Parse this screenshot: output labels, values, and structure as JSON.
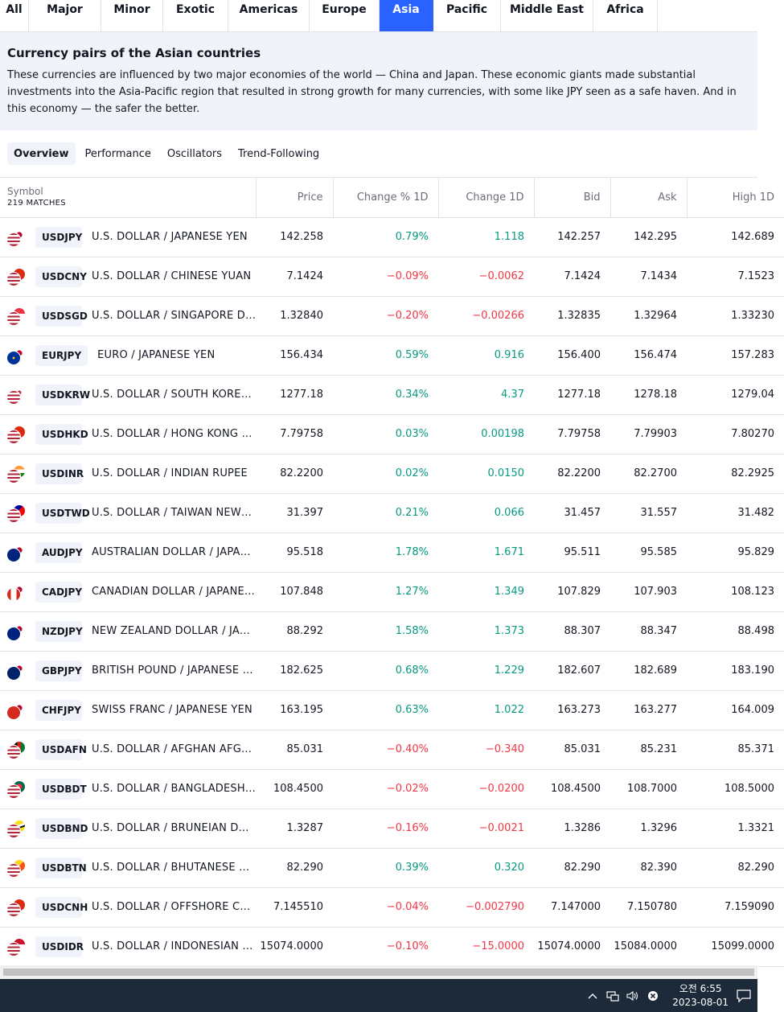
{
  "region_tabs": [
    {
      "label": "All",
      "width": 36
    },
    {
      "label": "Major",
      "width": 90
    },
    {
      "label": "Minor",
      "width": 77
    },
    {
      "label": "Exotic",
      "width": 81
    },
    {
      "label": "Americas",
      "width": 101
    },
    {
      "label": "Europe",
      "width": 87
    },
    {
      "label": "Asia",
      "width": 67,
      "active": true
    },
    {
      "label": "Pacific",
      "width": 84
    },
    {
      "label": "Middle East",
      "width": 115
    },
    {
      "label": "Africa",
      "width": 80
    }
  ],
  "description": {
    "title": "Currency pairs of the Asian countries",
    "text": "These currencies are influenced by two major economies of the world — China and Japan. These economic giants made substantial investments into the Asia-Pacific region that resulted in strong growth for many currencies, with some like JPY seen as a safe haven. And in this economy — the safer the better."
  },
  "sub_tabs": [
    {
      "label": "Overview",
      "active": true
    },
    {
      "label": "Performance"
    },
    {
      "label": "Oscillators"
    },
    {
      "label": "Trend-Following"
    }
  ],
  "table": {
    "symbol_header": "Symbol",
    "matches": "219 MATCHES",
    "columns": [
      "Price",
      "Change % 1D",
      "Change 1D",
      "Bid",
      "Ask",
      "High 1D"
    ],
    "rows": [
      {
        "ticker": "USDJPY",
        "name": "U.S. DOLLAR / JAPANESE YEN",
        "price": "142.258",
        "chg_pct": "0.79%",
        "chg": "1.118",
        "bid": "142.257",
        "ask": "142.295",
        "high": "142.689",
        "dir": "pos",
        "flag1": "usa",
        "flag2": "japan"
      },
      {
        "ticker": "USDCNY",
        "name": "U.S. DOLLAR / CHINESE YUAN",
        "price": "7.1424",
        "chg_pct": "−0.09%",
        "chg": "−0.0062",
        "bid": "7.1424",
        "ask": "7.1434",
        "high": "7.1523",
        "dir": "neg",
        "flag1": "usa",
        "flag2": "china"
      },
      {
        "ticker": "USDSGD",
        "name": "U.S. DOLLAR / SINGAPORE D…",
        "price": "1.32840",
        "chg_pct": "−0.20%",
        "chg": "−0.00266",
        "bid": "1.32835",
        "ask": "1.32964",
        "high": "1.33230",
        "dir": "neg",
        "flag1": "usa",
        "flag2": "singapore"
      },
      {
        "ticker": "EURJPY",
        "name": "EURO / JAPANESE YEN",
        "price": "156.434",
        "chg_pct": "0.59%",
        "chg": "0.916",
        "bid": "156.400",
        "ask": "156.474",
        "high": "157.283",
        "dir": "pos",
        "flag1": "eu",
        "flag2": "japan"
      },
      {
        "ticker": "USDKRW",
        "name": "U.S. DOLLAR / SOUTH KORE…",
        "price": "1277.18",
        "chg_pct": "0.34%",
        "chg": "4.37",
        "bid": "1277.18",
        "ask": "1278.18",
        "high": "1279.04",
        "dir": "pos",
        "flag1": "usa",
        "flag2": "korea"
      },
      {
        "ticker": "USDHKD",
        "name": "U.S. DOLLAR / HONG KONG …",
        "price": "7.79758",
        "chg_pct": "0.03%",
        "chg": "0.00198",
        "bid": "7.79758",
        "ask": "7.79903",
        "high": "7.80270",
        "dir": "pos",
        "flag1": "usa",
        "flag2": "hongkong"
      },
      {
        "ticker": "USDINR",
        "name": "U.S. DOLLAR / INDIAN RUPEE",
        "price": "82.2200",
        "chg_pct": "0.02%",
        "chg": "0.0150",
        "bid": "82.2200",
        "ask": "82.2700",
        "high": "82.2925",
        "dir": "pos",
        "flag1": "usa",
        "flag2": "india"
      },
      {
        "ticker": "USDTWD",
        "name": "U.S. DOLLAR / TAIWAN NEW…",
        "price": "31.397",
        "chg_pct": "0.21%",
        "chg": "0.066",
        "bid": "31.457",
        "ask": "31.557",
        "high": "31.482",
        "dir": "pos",
        "flag1": "usa",
        "flag2": "taiwan"
      },
      {
        "ticker": "AUDJPY",
        "name": "AUSTRALIAN DOLLAR / JAPA…",
        "price": "95.518",
        "chg_pct": "1.78%",
        "chg": "1.671",
        "bid": "95.511",
        "ask": "95.585",
        "high": "95.829",
        "dir": "pos",
        "flag1": "australia",
        "flag2": "japan"
      },
      {
        "ticker": "CADJPY",
        "name": "CANADIAN DOLLAR / JAPANE…",
        "price": "107.848",
        "chg_pct": "1.27%",
        "chg": "1.349",
        "bid": "107.829",
        "ask": "107.903",
        "high": "108.123",
        "dir": "pos",
        "flag1": "canada",
        "flag2": "japan"
      },
      {
        "ticker": "NZDJPY",
        "name": "NEW ZEALAND DOLLAR / JA…",
        "price": "88.292",
        "chg_pct": "1.58%",
        "chg": "1.373",
        "bid": "88.307",
        "ask": "88.347",
        "high": "88.498",
        "dir": "pos",
        "flag1": "newzealand",
        "flag2": "japan"
      },
      {
        "ticker": "GBPJPY",
        "name": "BRITISH POUND / JAPANESE …",
        "price": "182.625",
        "chg_pct": "0.68%",
        "chg": "1.229",
        "bid": "182.607",
        "ask": "182.689",
        "high": "183.190",
        "dir": "pos",
        "flag1": "uk",
        "flag2": "japan"
      },
      {
        "ticker": "CHFJPY",
        "name": "SWISS FRANC / JAPANESE YEN",
        "price": "163.195",
        "chg_pct": "0.63%",
        "chg": "1.022",
        "bid": "163.273",
        "ask": "163.277",
        "high": "164.009",
        "dir": "pos",
        "flag1": "swiss",
        "flag2": "japan"
      },
      {
        "ticker": "USDAFN",
        "name": "U.S. DOLLAR / AFGHAN AFG…",
        "price": "85.031",
        "chg_pct": "−0.40%",
        "chg": "−0.340",
        "bid": "85.031",
        "ask": "85.231",
        "high": "85.371",
        "dir": "neg",
        "flag1": "usa",
        "flag2": "afghanistan"
      },
      {
        "ticker": "USDBDT",
        "name": "U.S. DOLLAR / BANGLADESH…",
        "price": "108.4500",
        "chg_pct": "−0.02%",
        "chg": "−0.0200",
        "bid": "108.4500",
        "ask": "108.7000",
        "high": "108.5000",
        "dir": "neg",
        "flag1": "usa",
        "flag2": "bangladesh"
      },
      {
        "ticker": "USDBND",
        "name": "U.S. DOLLAR / BRUNEIAN D…",
        "price": "1.3287",
        "chg_pct": "−0.16%",
        "chg": "−0.0021",
        "bid": "1.3286",
        "ask": "1.3296",
        "high": "1.3321",
        "dir": "neg",
        "flag1": "usa",
        "flag2": "brunei"
      },
      {
        "ticker": "USDBTN",
        "name": "U.S. DOLLAR / BHUTANESE …",
        "price": "82.290",
        "chg_pct": "0.39%",
        "chg": "0.320",
        "bid": "82.290",
        "ask": "82.390",
        "high": "82.290",
        "dir": "pos",
        "flag1": "usa",
        "flag2": "bhutan"
      },
      {
        "ticker": "USDCNH",
        "name": "U.S. DOLLAR / OFFSHORE C…",
        "price": "7.145510",
        "chg_pct": "−0.04%",
        "chg": "−0.002790",
        "bid": "7.147000",
        "ask": "7.150780",
        "high": "7.159090",
        "dir": "neg",
        "flag1": "usa",
        "flag2": "china"
      },
      {
        "ticker": "USDIDR",
        "name": "U.S. DOLLAR / INDONESIAN …",
        "price": "15074.0000",
        "chg_pct": "−0.10%",
        "chg": "−15.0000",
        "bid": "15074.0000",
        "ask": "15084.0000",
        "high": "15099.0000",
        "dir": "neg",
        "flag1": "usa",
        "flag2": "indonesia"
      }
    ]
  },
  "flag_colors": {
    "usa": "linear-gradient(180deg,#b22234 0 14%,#fff 14% 28%,#b22234 28% 42%,#fff 42% 56%,#b22234 56% 70%,#fff 70% 84%,#b22234 84%)",
    "japan": "radial-gradient(circle,#bc002d 0 35%,#ffffff 36%)",
    "china": "#de2910",
    "singapore": "linear-gradient(180deg,#ef3340 0 50%,#ffffff 50%)",
    "eu": "radial-gradient(circle,#ffcc00 0 12%,#003399 13%)",
    "korea": "radial-gradient(circle,#cd2e3a 0 25%,#ffffff 26%)",
    "hongkong": "#de2910",
    "india": "linear-gradient(180deg,#ff9933 0 33%,#ffffff 33% 66%,#138808 66%)",
    "taiwan": "linear-gradient(135deg,#000095 0 45%,#fe0000 45%)",
    "australia": "#00247d",
    "canada": "linear-gradient(90deg,#d52b1e 0 28%,#ffffff 28% 72%,#d52b1e 72%)",
    "newzealand": "#00247d",
    "uk": "#012169",
    "swiss": "#d52b1e",
    "afghanistan": "linear-gradient(90deg,#000000 0 33%,#d32011 33% 66%,#007a36 66%)",
    "bangladesh": "radial-gradient(circle,#f42a41 0 35%,#006a4e 36%)",
    "brunei": "linear-gradient(160deg,#f7e017 0 40%,#ffffff 40% 55%,#000000 55% 65%,#f7e017 65%)",
    "bhutan": "linear-gradient(135deg,#ffd520 0 50%,#ff4e12 50%)",
    "indonesia": "linear-gradient(180deg,#ce1126 0 50%,#ffffff 50%)"
  },
  "colors": {
    "positive": "#089981",
    "negative": "#f23645",
    "accent": "#2962ff"
  },
  "taskbar": {
    "time": "오전 6:55",
    "date": "2023-08-01",
    "icons": [
      "chevron-up-icon",
      "network-icon",
      "volume-icon",
      "status-x-icon",
      "notification-icon"
    ]
  }
}
